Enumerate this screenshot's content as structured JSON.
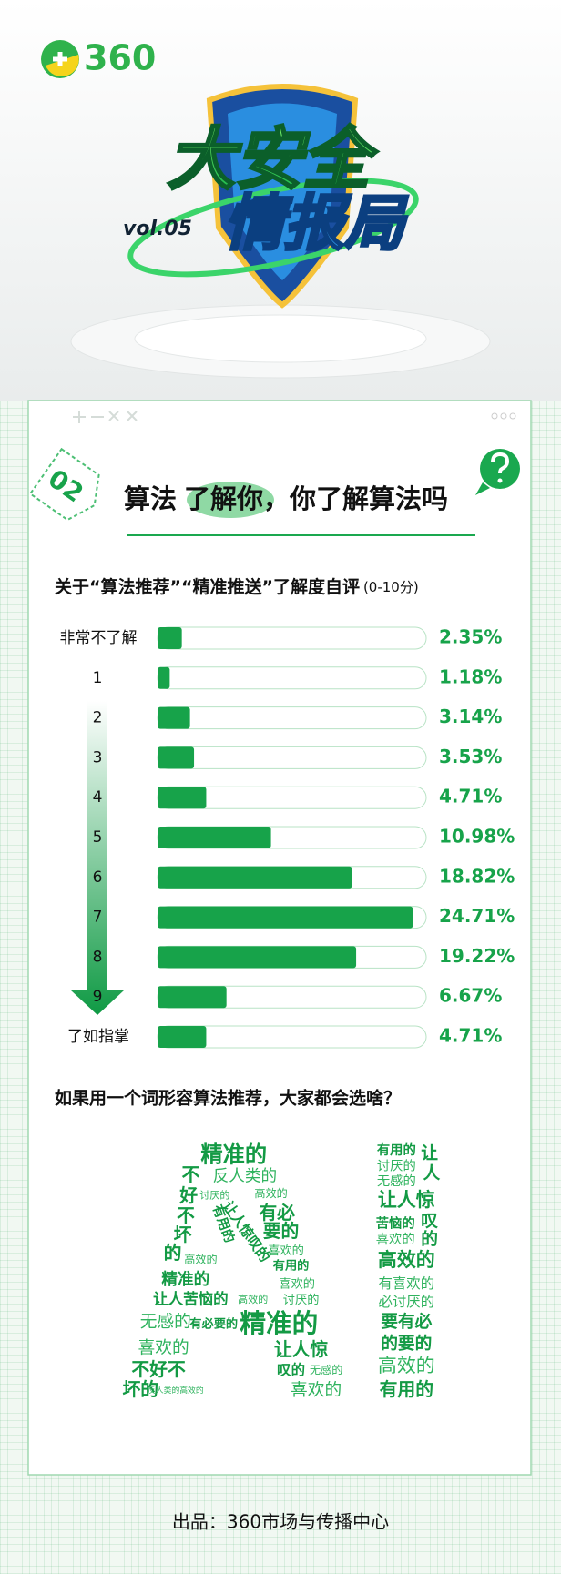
{
  "header": {
    "logo": "360",
    "volume": "vol.05",
    "title_line1": "大安全",
    "title_line2": "情报局"
  },
  "section": {
    "tag": "02",
    "title_parts": [
      "算法",
      "了解你",
      "，你了解算法吗"
    ]
  },
  "chart_data": {
    "type": "bar",
    "orientation": "horizontal",
    "title": "关于“算法推荐”“精准推送”了解度自评",
    "subtitle": "(0-10分)",
    "categories": [
      "非常不了解",
      "1",
      "2",
      "3",
      "4",
      "5",
      "6",
      "7",
      "8",
      "9",
      "了如指掌"
    ],
    "values": [
      2.35,
      1.18,
      3.14,
      3.53,
      4.71,
      10.98,
      18.82,
      24.71,
      19.22,
      6.67,
      4.71
    ],
    "value_labels": [
      "2.35%",
      "1.18%",
      "3.14%",
      "3.53%",
      "4.71%",
      "10.98%",
      "18.82%",
      "24.71%",
      "19.22%",
      "6.67%",
      "4.71%"
    ],
    "color": "#17a34a",
    "xlim": [
      0,
      26
    ]
  },
  "word_cloud": {
    "title": "如果用一个词形容算法推荐，大家都会选啥？",
    "words": [
      "精准的",
      "不",
      "反人类的",
      "讨厌的",
      "高效的",
      "好",
      "有必",
      "不",
      "要的",
      "坏",
      "喜欢的",
      "的",
      "高效的",
      "有用的",
      "精准的",
      "喜欢的",
      "让人苦恼的",
      "高效的",
      "讨厌的",
      "无感的",
      "有必要的",
      "精准的",
      "让人惊",
      "喜欢的",
      "叹的",
      "无感的",
      "不好不",
      "坏的",
      "反人类的高效的",
      "喜欢的",
      "让人惊叹的",
      "有用的",
      "有用的",
      "让",
      "讨厌的",
      "人",
      "无感的",
      "让人惊",
      "苦恼的",
      "叹",
      "喜欢的",
      "的",
      "高效的",
      "有喜欢的",
      "必讨厌的",
      "要有必",
      "的要的",
      "高效的",
      "有用的"
    ]
  },
  "footer": "出品：360市场与传播中心"
}
